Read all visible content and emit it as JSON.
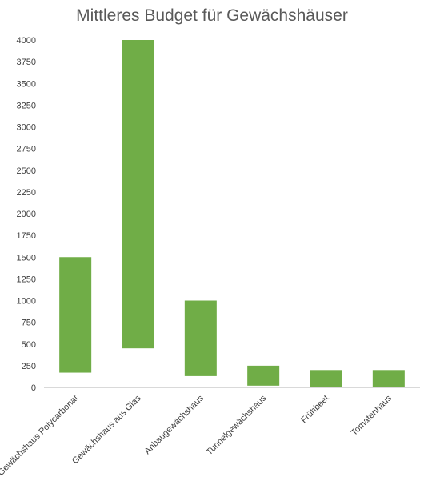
{
  "chart_data": {
    "type": "bar",
    "subtype": "floating-range",
    "title": "Mittleres Budget für Gewächshäuser",
    "xlabel": "",
    "ylabel": "",
    "ylim": [
      0,
      4000
    ],
    "yticks": [
      0,
      250,
      500,
      750,
      1000,
      1250,
      1500,
      1750,
      2000,
      2250,
      2500,
      2750,
      3000,
      3250,
      3500,
      3750,
      4000
    ],
    "grid": false,
    "legend": "none",
    "bar_color": "#70AD47",
    "categories": [
      "Gewächshaus Polycarbonat",
      "Gewächshaus aus Glas",
      "Anbaugewächshaus",
      "Tunnelgewächshaus",
      "Frühbeet",
      "Tomatenhaus"
    ],
    "ranges": [
      {
        "low": 170,
        "high": 1500
      },
      {
        "low": 450,
        "high": 4000
      },
      {
        "low": 130,
        "high": 1000
      },
      {
        "low": 20,
        "high": 250
      },
      {
        "low": 0,
        "high": 200
      },
      {
        "low": 0,
        "high": 200
      }
    ]
  }
}
